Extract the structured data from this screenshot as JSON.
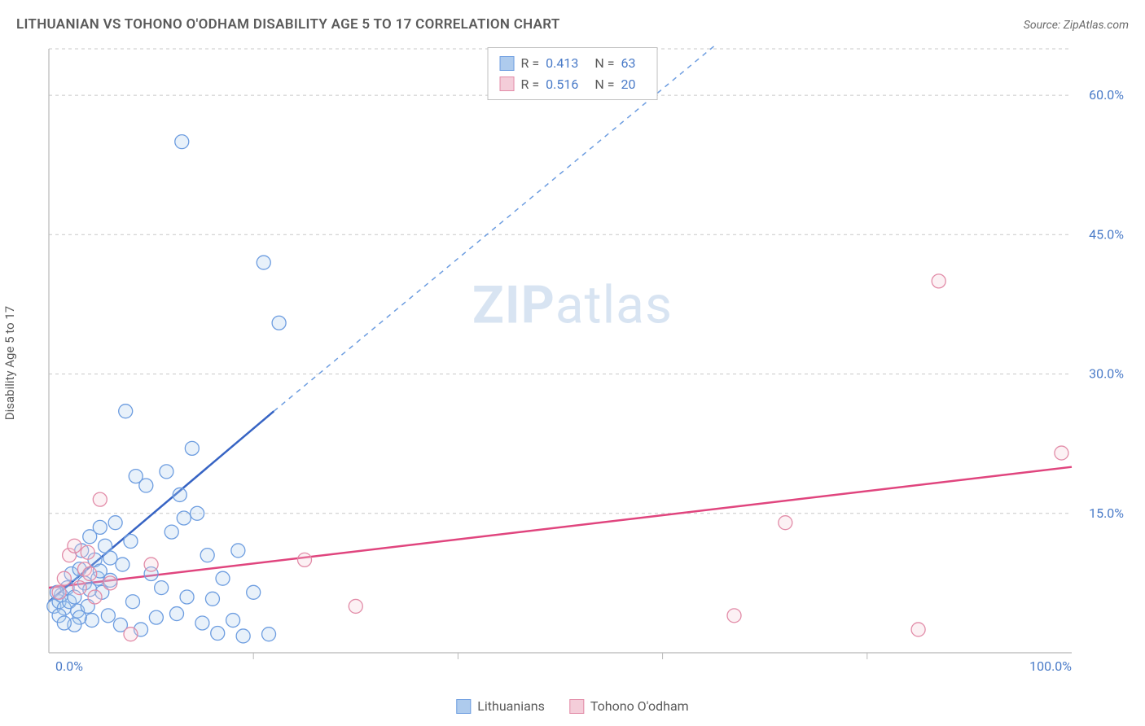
{
  "title": "LITHUANIAN VS TOHONO O'ODHAM DISABILITY AGE 5 TO 17 CORRELATION CHART",
  "source": "Source: ZipAtlas.com",
  "ylabel": "Disability Age 5 to 17",
  "watermark_bold": "ZIP",
  "watermark_light": "atlas",
  "chart": {
    "type": "scatter",
    "xlim": [
      0,
      100
    ],
    "ylim": [
      0,
      65
    ],
    "yticks": [
      15.0,
      30.0,
      45.0,
      60.0
    ],
    "ytick_labels": [
      "15.0%",
      "30.0%",
      "45.0%",
      "60.0%"
    ],
    "xtick_labels": {
      "left": "0.0%",
      "right": "100.0%"
    },
    "xticks_minor": [
      20,
      40,
      60,
      80
    ],
    "background_color": "#ffffff",
    "grid_color": "#c8c8c8",
    "axis_color": "#b8b8b8",
    "tick_label_color": "#4a7bc8",
    "marker_radius": 8.5,
    "marker_stroke_width": 1.3,
    "marker_fill_opacity": 0.28,
    "series": [
      {
        "name": "Lithuanians",
        "color_stroke": "#6d9de0",
        "color_fill": "#aecbed",
        "line_color": "#3764c4",
        "R": "0.413",
        "N": "63",
        "trend": {
          "x1": 0,
          "y1": 5.5,
          "x2": 22,
          "y2": 26,
          "dash_to_x": 68,
          "dash_to_y": 68
        },
        "points": [
          [
            0.5,
            5.0
          ],
          [
            1.0,
            5.5
          ],
          [
            1.2,
            6.2
          ],
          [
            1.5,
            4.8
          ],
          [
            1.8,
            7.0
          ],
          [
            2.0,
            5.5
          ],
          [
            2.2,
            8.5
          ],
          [
            2.5,
            6.0
          ],
          [
            2.8,
            4.5
          ],
          [
            3.0,
            9.0
          ],
          [
            3.2,
            11.0
          ],
          [
            3.5,
            7.5
          ],
          [
            3.8,
            5.0
          ],
          [
            4.0,
            12.5
          ],
          [
            4.2,
            3.5
          ],
          [
            4.5,
            10.0
          ],
          [
            4.8,
            8.0
          ],
          [
            5.0,
            13.5
          ],
          [
            5.2,
            6.5
          ],
          [
            5.5,
            11.5
          ],
          [
            5.8,
            4.0
          ],
          [
            6.0,
            7.8
          ],
          [
            6.5,
            14.0
          ],
          [
            7.0,
            3.0
          ],
          [
            7.2,
            9.5
          ],
          [
            7.5,
            26.0
          ],
          [
            8.0,
            12.0
          ],
          [
            8.2,
            5.5
          ],
          [
            8.5,
            19.0
          ],
          [
            9.0,
            2.5
          ],
          [
            9.5,
            18.0
          ],
          [
            10.0,
            8.5
          ],
          [
            10.5,
            3.8
          ],
          [
            11.0,
            7.0
          ],
          [
            11.5,
            19.5
          ],
          [
            12.0,
            13.0
          ],
          [
            12.5,
            4.2
          ],
          [
            13.0,
            55.0
          ],
          [
            13.5,
            6.0
          ],
          [
            14.0,
            22.0
          ],
          [
            14.5,
            15.0
          ],
          [
            15.0,
            3.2
          ],
          [
            15.5,
            10.5
          ],
          [
            16.0,
            5.8
          ],
          [
            12.8,
            17.0
          ],
          [
            13.2,
            14.5
          ],
          [
            16.5,
            2.1
          ],
          [
            17.0,
            8.0
          ],
          [
            18.0,
            3.5
          ],
          [
            18.5,
            11.0
          ],
          [
            19.0,
            1.8
          ],
          [
            20.0,
            6.5
          ],
          [
            21.0,
            42.0
          ],
          [
            21.5,
            2.0
          ],
          [
            3.0,
            3.8
          ],
          [
            4.0,
            6.8
          ],
          [
            5.0,
            8.8
          ],
          [
            6.0,
            10.2
          ],
          [
            2.5,
            3.0
          ],
          [
            1.0,
            4.0
          ],
          [
            22.5,
            35.5
          ],
          [
            0.8,
            6.5
          ],
          [
            1.5,
            3.2
          ]
        ]
      },
      {
        "name": "Tohono O'odham",
        "color_stroke": "#e28ca8",
        "color_fill": "#f4cdd9",
        "line_color": "#e0457e",
        "R": "0.516",
        "N": "20",
        "trend": {
          "x1": 0,
          "y1": 7.0,
          "x2": 100,
          "y2": 20.0
        },
        "points": [
          [
            1.0,
            6.5
          ],
          [
            1.5,
            8.0
          ],
          [
            2.0,
            10.5
          ],
          [
            2.5,
            11.5
          ],
          [
            3.0,
            7.0
          ],
          [
            3.5,
            9.0
          ],
          [
            4.0,
            8.5
          ],
          [
            5.0,
            16.5
          ],
          [
            6.0,
            7.5
          ],
          [
            8.0,
            2.0
          ],
          [
            10.0,
            9.5
          ],
          [
            25.0,
            10.0
          ],
          [
            30.0,
            5.0
          ],
          [
            67.0,
            4.0
          ],
          [
            72.0,
            14.0
          ],
          [
            85.0,
            2.5
          ],
          [
            87.0,
            40.0
          ],
          [
            99.0,
            21.5
          ],
          [
            4.5,
            6.0
          ],
          [
            3.8,
            10.8
          ]
        ]
      }
    ]
  },
  "legend": {
    "series1": "Lithuanians",
    "series2": "Tohono O'odham"
  },
  "stats_labels": {
    "R": "R =",
    "N": "N ="
  }
}
